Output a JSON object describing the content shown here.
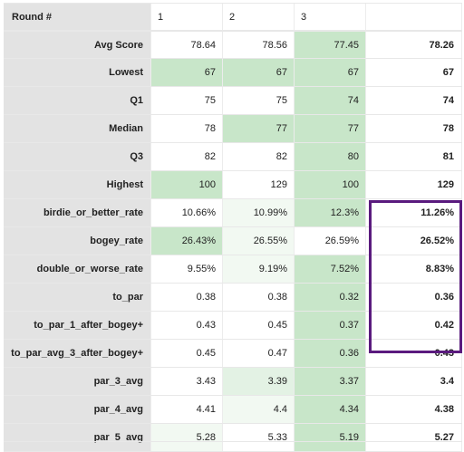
{
  "header": {
    "label": "Round #",
    "rounds": [
      "1",
      "2",
      "3"
    ]
  },
  "rows": [
    {
      "label": "Avg Score",
      "values": [
        "78.64",
        "78.56",
        "77.45"
      ],
      "total": "78.26"
    },
    {
      "label": "Lowest",
      "values": [
        "67",
        "67",
        "67"
      ],
      "total": "67"
    },
    {
      "label": "Q1",
      "values": [
        "75",
        "75",
        "74"
      ],
      "total": "74"
    },
    {
      "label": "Median",
      "values": [
        "78",
        "77",
        "77"
      ],
      "total": "78"
    },
    {
      "label": "Q3",
      "values": [
        "82",
        "82",
        "80"
      ],
      "total": "81"
    },
    {
      "label": "Highest",
      "values": [
        "100",
        "129",
        "100"
      ],
      "total": "129"
    },
    {
      "label": "birdie_or_better_rate",
      "values": [
        "10.66%",
        "10.99%",
        "12.3%"
      ],
      "total": "11.26%"
    },
    {
      "label": "bogey_rate",
      "values": [
        "26.43%",
        "26.55%",
        "26.59%"
      ],
      "total": "26.52%"
    },
    {
      "label": "double_or_worse_rate",
      "values": [
        "9.55%",
        "9.19%",
        "7.52%"
      ],
      "total": "8.83%"
    },
    {
      "label": "to_par",
      "values": [
        "0.38",
        "0.38",
        "0.32"
      ],
      "total": "0.36"
    },
    {
      "label": "to_par_1_after_bogey+",
      "values": [
        "0.43",
        "0.45",
        "0.37"
      ],
      "total": "0.42"
    },
    {
      "label": "to_par_avg_3_after_bogey+",
      "values": [
        "0.45",
        "0.47",
        "0.36"
      ],
      "total": "0.43"
    },
    {
      "label": "par_3_avg",
      "values": [
        "3.43",
        "3.39",
        "3.37"
      ],
      "total": "3.4"
    },
    {
      "label": "par_4_avg",
      "values": [
        "4.41",
        "4.4",
        "4.34"
      ],
      "total": "4.38"
    },
    {
      "label": "par_5_avg",
      "values": [
        "5.28",
        "5.33",
        "5.19"
      ],
      "total": "5.27"
    }
  ],
  "colors": {
    "label_bg": "#e3e3e3",
    "best_green": "#c8e6c9",
    "light_green": "#e3f2e4",
    "faint_green": "#f2f9f2",
    "highlight_border": "#5a1a7e"
  },
  "cell_shading": [
    [
      "none",
      "none",
      "best_green"
    ],
    [
      "best_green",
      "best_green",
      "best_green"
    ],
    [
      "none",
      "none",
      "best_green"
    ],
    [
      "none",
      "best_green",
      "best_green"
    ],
    [
      "none",
      "none",
      "best_green"
    ],
    [
      "best_green",
      "none",
      "best_green"
    ],
    [
      "none",
      "faint_green",
      "best_green"
    ],
    [
      "best_green",
      "faint_green",
      "none"
    ],
    [
      "none",
      "faint_green",
      "best_green"
    ],
    [
      "none",
      "none",
      "best_green"
    ],
    [
      "none",
      "none",
      "best_green"
    ],
    [
      "none",
      "none",
      "best_green"
    ],
    [
      "none",
      "light_green",
      "best_green"
    ],
    [
      "none",
      "faint_green",
      "best_green"
    ],
    [
      "faint_green",
      "none",
      "best_green"
    ]
  ]
}
